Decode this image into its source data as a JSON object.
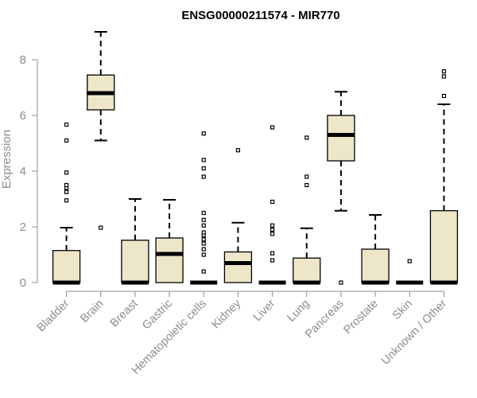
{
  "chart_data": {
    "type": "boxplot",
    "title": "ENSG00000211574 - MIR770",
    "ylabel": "Expression",
    "xlabel": "",
    "ylim": [
      0,
      9
    ],
    "yticks": [
      0,
      2,
      4,
      6,
      8
    ],
    "box_color": "#ede6c9",
    "line_color": "#000000",
    "axis_color": "#8c8c8c",
    "categories": [
      "Bladder",
      "Brain",
      "Breast",
      "Gastric",
      "Hematopoietic cells",
      "Kidney",
      "Liver",
      "Lung",
      "Pancreas",
      "Prostate",
      "Skin",
      "Unknown / Other"
    ],
    "boxes": [
      {
        "category": "Bladder",
        "whisker_low": 0,
        "q1": 0,
        "median": 0,
        "q3": 1.15,
        "whisker_high": 1.97,
        "outliers": [
          2.95,
          3.25,
          3.4,
          3.5,
          3.95,
          5.1,
          5.67
        ]
      },
      {
        "category": "Brain",
        "whisker_low": 5.1,
        "q1": 6.2,
        "median": 6.8,
        "q3": 7.45,
        "whisker_high": 9.0,
        "outliers": [
          1.97
        ]
      },
      {
        "category": "Breast",
        "whisker_low": 0,
        "q1": 0,
        "median": 0,
        "q3": 1.52,
        "whisker_high": 3.0,
        "outliers": []
      },
      {
        "category": "Gastric",
        "whisker_low": 0,
        "q1": 0,
        "median": 1.03,
        "q3": 1.6,
        "whisker_high": 2.97,
        "outliers": []
      },
      {
        "category": "Hematopoietic cells",
        "whisker_low": 0,
        "q1": 0,
        "median": 0,
        "q3": 0,
        "whisker_high": 0,
        "outliers": [
          0.4,
          1.0,
          1.2,
          1.4,
          1.55,
          1.7,
          1.8,
          2.05,
          2.25,
          2.5,
          3.8,
          4.1,
          4.4,
          5.35
        ]
      },
      {
        "category": "Kidney",
        "whisker_low": 0,
        "q1": 0,
        "median": 0.7,
        "q3": 1.1,
        "whisker_high": 2.15,
        "outliers": [
          4.75
        ]
      },
      {
        "category": "Liver",
        "whisker_low": 0,
        "q1": 0,
        "median": 0,
        "q3": 0,
        "whisker_high": 0,
        "outliers": [
          0.8,
          1.05,
          1.75,
          1.9,
          2.05,
          2.9,
          5.57
        ]
      },
      {
        "category": "Lung",
        "whisker_low": 0,
        "q1": 0,
        "median": 0,
        "q3": 0.88,
        "whisker_high": 1.95,
        "outliers": [
          3.5,
          3.8,
          5.2
        ]
      },
      {
        "category": "Pancreas",
        "whisker_low": 2.58,
        "q1": 4.37,
        "median": 5.3,
        "q3": 6.0,
        "whisker_high": 6.85,
        "outliers": [
          0
        ]
      },
      {
        "category": "Prostate",
        "whisker_low": 0,
        "q1": 0,
        "median": 0,
        "q3": 1.2,
        "whisker_high": 2.43,
        "outliers": []
      },
      {
        "category": "Skin",
        "whisker_low": 0,
        "q1": 0,
        "median": 0,
        "q3": 0,
        "whisker_high": 0,
        "outliers": [
          0.77
        ]
      },
      {
        "category": "Unknown / Other",
        "whisker_low": 0,
        "q1": 0,
        "median": 0,
        "q3": 2.58,
        "whisker_high": 6.4,
        "outliers": [
          6.7,
          7.4,
          7.58
        ]
      }
    ]
  }
}
